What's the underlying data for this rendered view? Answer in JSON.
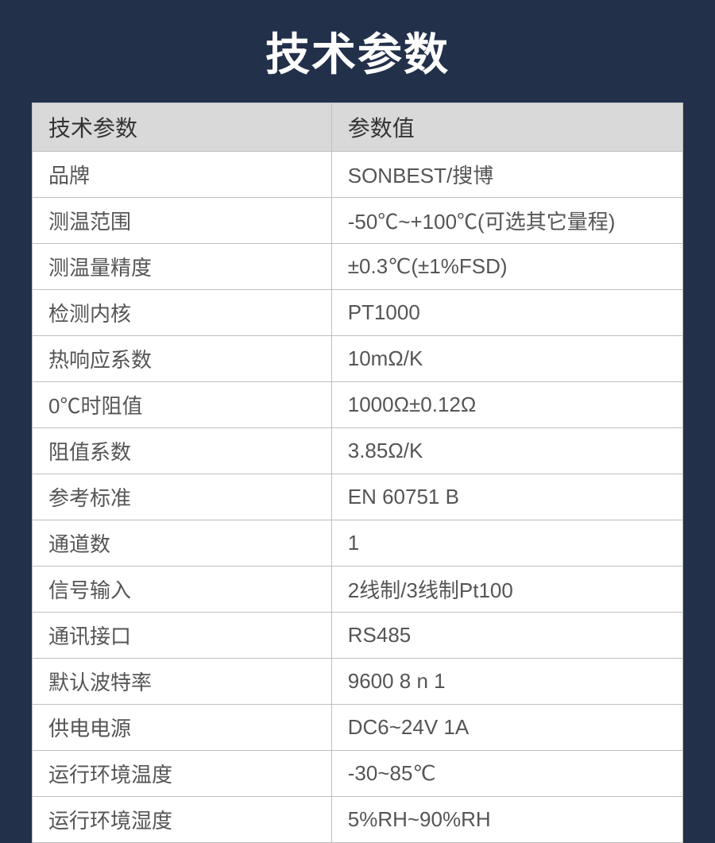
{
  "title": "技术参数",
  "table": {
    "header": {
      "param": "技术参数",
      "value": "参数值"
    },
    "rows": [
      {
        "param": "品牌",
        "value": "SONBEST/搜博"
      },
      {
        "param": "测温范围",
        "value": "-50℃~+100℃(可选其它量程)"
      },
      {
        "param": "测温量精度",
        "value": "±0.3℃(±1%FSD)"
      },
      {
        "param": "检测内核",
        "value": "PT1000"
      },
      {
        "param": "热响应系数",
        "value": "10mΩ/K"
      },
      {
        "param": "0℃时阻值",
        "value": "1000Ω±0.12Ω"
      },
      {
        "param": "阻值系数",
        "value": "3.85Ω/K"
      },
      {
        "param": "参考标准",
        "value": "EN 60751 B"
      },
      {
        "param": "通道数",
        "value": "1"
      },
      {
        "param": "信号输入",
        "value": "2线制/3线制Pt100"
      },
      {
        "param": "通讯接口",
        "value": "RS485"
      },
      {
        "param": "默认波特率",
        "value": "9600 8 n 1"
      },
      {
        "param": "供电电源",
        "value": "DC6~24V 1A"
      },
      {
        "param": "运行环境温度",
        "value": "-30~85℃"
      },
      {
        "param": "运行环境湿度",
        "value": "5%RH~90%RH"
      }
    ]
  },
  "styling": {
    "background_color": "#22304a",
    "header_text_color": "#ffffff",
    "header_fontsize": 56,
    "table_header_bg": "#d9d9d9",
    "table_header_color": "#333333",
    "table_header_fontsize": 28,
    "cell_color": "#555555",
    "cell_fontsize": 26,
    "border_color": "#bfbfbf",
    "cell_bg": "#ffffff",
    "col_widths": [
      "46%",
      "54%"
    ]
  }
}
